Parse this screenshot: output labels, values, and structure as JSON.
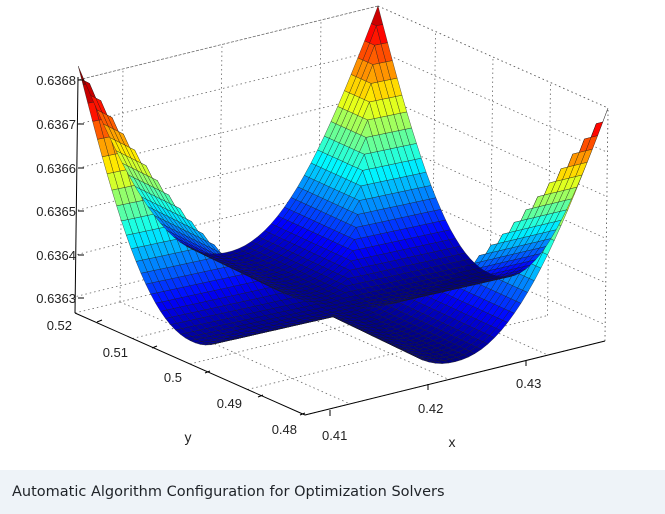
{
  "caption": "Automatic Algorithm Configuration for Optimization Solvers",
  "figure": {
    "x_axis": {
      "label": "x",
      "ticks": [
        "0.41",
        "0.42",
        "0.43"
      ]
    },
    "y_axis": {
      "label": "y",
      "ticks": [
        "0.48",
        "0.49",
        "0.5",
        "0.51",
        "0.52"
      ]
    },
    "z_axis": {
      "ticks": [
        "0.6363",
        "0.6364",
        "0.6365",
        "0.6366",
        "0.6367",
        "0.6368"
      ]
    }
  },
  "chart_data": {
    "type": "surface",
    "colormap": "jet",
    "grid": true,
    "x_range": [
      0.405,
      0.437
    ],
    "y_range": [
      0.48,
      0.52
    ],
    "z_range": [
      0.6362,
      0.6369
    ],
    "x_ticks": [
      0.41,
      0.42,
      0.43
    ],
    "y_ticks": [
      0.48,
      0.49,
      0.5,
      0.51,
      0.52
    ],
    "z_ticks": [
      0.6363,
      0.6364,
      0.6365,
      0.6366,
      0.6367,
      0.6368
    ],
    "xlabel": "x",
    "ylabel": "y",
    "zlabel": ""
  },
  "colors": {
    "caption_background": "#eef3f8",
    "caption_text": "#1f2328",
    "grid_line": "#555555",
    "axis_line": "#000000"
  }
}
